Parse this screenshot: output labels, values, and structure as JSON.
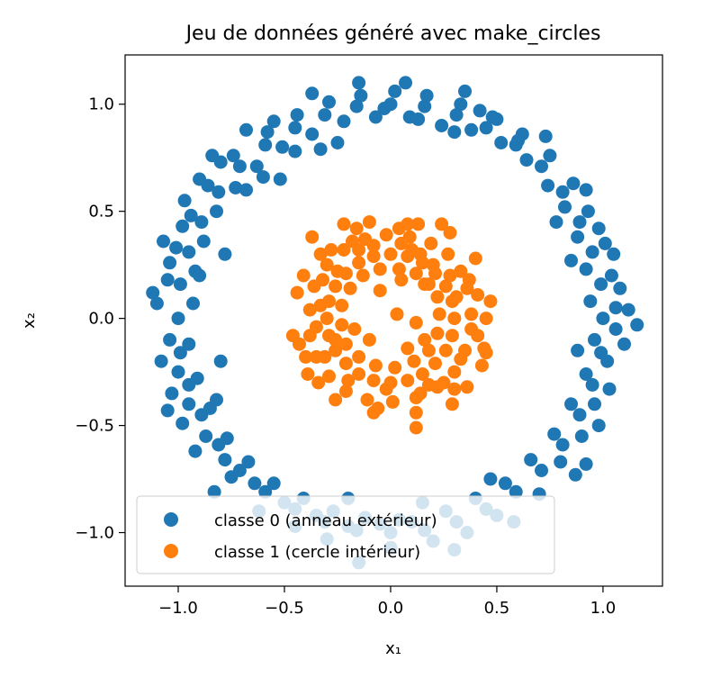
{
  "chart_data": {
    "type": "scatter",
    "title": "Jeu de données généré avec make_circles",
    "xlabel": "x₁",
    "ylabel": "x₂",
    "xlim": [
      -1.25,
      1.28
    ],
    "ylim": [
      -1.25,
      1.23
    ],
    "xticks": [
      -1.0,
      -0.5,
      0.0,
      0.5,
      1.0
    ],
    "xtick_labels": [
      "−1.0",
      "−0.5",
      "0.0",
      "0.5",
      "1.0"
    ],
    "yticks": [
      -1.0,
      -0.5,
      0.0,
      0.5,
      1.0
    ],
    "ytick_labels": [
      "−1.0",
      "−0.5",
      "0.0",
      "0.5",
      "1.0"
    ],
    "grid": false,
    "legend_position": "lower-left",
    "series": [
      {
        "name": "classe 0 (anneau extérieur)",
        "color": "#1f77b4",
        "points": [
          [
            1.0,
            0.0
          ],
          [
            0.99,
            0.16
          ],
          [
            0.95,
            0.31
          ],
          [
            0.89,
            0.45
          ],
          [
            0.81,
            0.59
          ],
          [
            0.71,
            0.71
          ],
          [
            0.59,
            0.81
          ],
          [
            0.45,
            0.89
          ],
          [
            0.31,
            0.95
          ],
          [
            0.16,
            0.99
          ],
          [
            0.0,
            1.0
          ],
          [
            -0.16,
            0.99
          ],
          [
            -0.31,
            0.95
          ],
          [
            -0.45,
            0.89
          ],
          [
            -0.59,
            0.81
          ],
          [
            -0.71,
            0.71
          ],
          [
            -0.81,
            0.59
          ],
          [
            -0.89,
            0.45
          ],
          [
            -0.95,
            0.31
          ],
          [
            -0.99,
            0.16
          ],
          [
            -1.0,
            0.0
          ],
          [
            -0.99,
            -0.16
          ],
          [
            -0.95,
            -0.31
          ],
          [
            -0.89,
            -0.45
          ],
          [
            -0.81,
            -0.59
          ],
          [
            -0.71,
            -0.71
          ],
          [
            -0.59,
            -0.81
          ],
          [
            -0.45,
            -0.89
          ],
          [
            -0.31,
            -0.95
          ],
          [
            -0.16,
            -0.99
          ],
          [
            0.0,
            -1.0
          ],
          [
            0.16,
            -0.99
          ],
          [
            0.31,
            -0.95
          ],
          [
            0.45,
            -0.89
          ],
          [
            0.59,
            -0.81
          ],
          [
            0.71,
            -0.71
          ],
          [
            0.81,
            -0.59
          ],
          [
            0.89,
            -0.45
          ],
          [
            0.95,
            -0.31
          ],
          [
            0.99,
            -0.16
          ],
          [
            1.06,
            0.05
          ],
          [
            1.04,
            0.2
          ],
          [
            1.01,
            0.35
          ],
          [
            0.93,
            0.5
          ],
          [
            0.86,
            0.63
          ],
          [
            0.75,
            0.76
          ],
          [
            0.62,
            0.86
          ],
          [
            0.48,
            0.94
          ],
          [
            0.33,
            1.0
          ],
          [
            0.17,
            1.04
          ],
          [
            0.02,
            1.06
          ],
          [
            -0.14,
            1.04
          ],
          [
            -0.29,
            1.01
          ],
          [
            -0.44,
            0.95
          ],
          [
            -0.58,
            0.87
          ],
          [
            -0.74,
            0.76
          ],
          [
            -0.86,
            0.62
          ],
          [
            -0.94,
            0.48
          ],
          [
            -1.01,
            0.33
          ],
          [
            -1.05,
            0.18
          ],
          [
            -1.1,
            0.07
          ],
          [
            -1.04,
            -0.1
          ],
          [
            -1.0,
            -0.25
          ],
          [
            -0.95,
            -0.4
          ],
          [
            -0.87,
            -0.55
          ],
          [
            -0.78,
            -0.66
          ],
          [
            -0.64,
            -0.77
          ],
          [
            -0.5,
            -0.86
          ],
          [
            -0.35,
            -0.92
          ],
          [
            -0.2,
            -0.97
          ],
          [
            -0.05,
            -0.96
          ],
          [
            0.1,
            -0.95
          ],
          [
            0.26,
            -0.9
          ],
          [
            0.4,
            -0.84
          ],
          [
            0.54,
            -0.77
          ],
          [
            0.66,
            -0.66
          ],
          [
            0.77,
            -0.54
          ],
          [
            0.85,
            -0.4
          ],
          [
            0.92,
            -0.26
          ],
          [
            0.96,
            -0.1
          ],
          [
            0.94,
            0.08
          ],
          [
            0.92,
            0.23
          ],
          [
            0.88,
            0.38
          ],
          [
            0.82,
            0.52
          ],
          [
            0.74,
            0.62
          ],
          [
            0.64,
            0.74
          ],
          [
            0.52,
            0.82
          ],
          [
            0.38,
            0.88
          ],
          [
            0.24,
            0.9
          ],
          [
            0.09,
            0.94
          ],
          [
            -0.07,
            0.94
          ],
          [
            -0.22,
            0.92
          ],
          [
            -0.37,
            0.86
          ],
          [
            -0.51,
            0.8
          ],
          [
            -0.63,
            0.71
          ],
          [
            -0.73,
            0.61
          ],
          [
            -0.82,
            0.5
          ],
          [
            -0.88,
            0.36
          ],
          [
            -0.92,
            0.22
          ],
          [
            -0.93,
            0.07
          ],
          [
            -0.95,
            -0.12
          ],
          [
            -0.91,
            -0.28
          ],
          [
            -0.85,
            -0.42
          ],
          [
            -0.77,
            -0.56
          ],
          [
            -0.67,
            -0.67
          ],
          [
            -0.55,
            -0.77
          ],
          [
            -0.41,
            -0.84
          ],
          [
            -0.27,
            -0.9
          ],
          [
            -0.12,
            -0.93
          ],
          [
            0.04,
            -0.94
          ],
          [
            1.12,
            0.04
          ],
          [
            1.16,
            -0.03
          ],
          [
            1.08,
            0.14
          ],
          [
            1.1,
            -0.12
          ],
          [
            0.98,
            0.42
          ],
          [
            1.05,
            0.3
          ],
          [
            0.92,
            0.6
          ],
          [
            -0.52,
            0.65
          ],
          [
            -0.33,
            0.79
          ],
          [
            0.13,
            0.93
          ],
          [
            0.35,
            1.06
          ],
          [
            -0.15,
            1.1
          ],
          [
            0.07,
            1.1
          ],
          [
            -1.12,
            0.12
          ],
          [
            -1.07,
            0.36
          ],
          [
            -1.05,
            -0.43
          ],
          [
            -0.83,
            -0.81
          ],
          [
            -0.15,
            -1.14
          ],
          [
            0.3,
            -1.08
          ],
          [
            0.58,
            -0.95
          ],
          [
            0.92,
            -0.68
          ],
          [
            0.87,
            -0.73
          ],
          [
            1.03,
            -0.33
          ],
          [
            0.98,
            -0.5
          ],
          [
            0.47,
            -0.75
          ],
          [
            -0.2,
            -0.84
          ],
          [
            0.15,
            -0.86
          ],
          [
            -0.8,
            0.73
          ],
          [
            -0.68,
            0.6
          ],
          [
            -0.97,
            0.55
          ],
          [
            -0.9,
            0.2
          ],
          [
            -0.78,
            0.3
          ],
          [
            -0.8,
            -0.2
          ],
          [
            -0.82,
            -0.38
          ],
          [
            0.85,
            0.27
          ],
          [
            0.88,
            -0.15
          ],
          [
            0.78,
            0.45
          ],
          [
            0.73,
            0.85
          ],
          [
            0.6,
            0.83
          ],
          [
            0.3,
            0.87
          ],
          [
            -0.25,
            0.82
          ],
          [
            -0.45,
            0.78
          ],
          [
            -0.6,
            0.66
          ],
          [
            0.5,
            0.93
          ],
          [
            0.42,
            0.97
          ],
          [
            -0.03,
            0.98
          ],
          [
            -0.37,
            1.05
          ],
          [
            -0.55,
            0.92
          ],
          [
            -0.68,
            0.88
          ],
          [
            -0.84,
            0.76
          ],
          [
            -0.9,
            0.65
          ],
          [
            -0.98,
            0.43
          ],
          [
            -1.04,
            0.26
          ],
          [
            -1.08,
            -0.2
          ],
          [
            -1.03,
            -0.35
          ],
          [
            -0.98,
            -0.49
          ],
          [
            -0.92,
            -0.62
          ],
          [
            -0.75,
            -0.74
          ],
          [
            -0.62,
            -0.9
          ],
          [
            -0.45,
            -0.97
          ],
          [
            -0.3,
            -1.03
          ],
          [
            0.0,
            -1.07
          ],
          [
            0.2,
            -1.04
          ],
          [
            0.36,
            -1.0
          ],
          [
            0.5,
            -0.92
          ],
          [
            0.7,
            -0.82
          ],
          [
            0.8,
            -0.67
          ],
          [
            0.9,
            -0.55
          ],
          [
            0.96,
            -0.4
          ],
          [
            1.02,
            -0.2
          ],
          [
            1.06,
            -0.05
          ]
        ]
      },
      {
        "name": "classe 1 (cercle intérieur)",
        "color": "#ff7f0e",
        "points": [
          [
            0.3,
            0.0
          ],
          [
            0.29,
            0.08
          ],
          [
            0.26,
            0.15
          ],
          [
            0.21,
            0.21
          ],
          [
            0.15,
            0.26
          ],
          [
            0.08,
            0.29
          ],
          [
            0.0,
            0.3
          ],
          [
            -0.08,
            0.29
          ],
          [
            -0.15,
            0.26
          ],
          [
            -0.21,
            0.21
          ],
          [
            -0.26,
            0.15
          ],
          [
            -0.29,
            0.08
          ],
          [
            -0.3,
            0.0
          ],
          [
            -0.29,
            -0.08
          ],
          [
            -0.26,
            -0.15
          ],
          [
            -0.21,
            -0.21
          ],
          [
            -0.15,
            -0.26
          ],
          [
            -0.08,
            -0.29
          ],
          [
            0.0,
            -0.3
          ],
          [
            0.08,
            -0.29
          ],
          [
            0.15,
            -0.26
          ],
          [
            0.21,
            -0.21
          ],
          [
            0.26,
            -0.15
          ],
          [
            0.29,
            -0.08
          ],
          [
            0.38,
            0.02
          ],
          [
            0.36,
            0.14
          ],
          [
            0.33,
            0.22
          ],
          [
            0.27,
            0.3
          ],
          [
            0.19,
            0.35
          ],
          [
            0.09,
            0.38
          ],
          [
            -0.02,
            0.39
          ],
          [
            -0.12,
            0.37
          ],
          [
            -0.22,
            0.32
          ],
          [
            -0.3,
            0.25
          ],
          [
            -0.36,
            0.15
          ],
          [
            -0.38,
            0.04
          ],
          [
            -0.38,
            -0.08
          ],
          [
            -0.35,
            -0.18
          ],
          [
            -0.29,
            -0.27
          ],
          [
            -0.21,
            -0.34
          ],
          [
            -0.11,
            -0.38
          ],
          [
            0.01,
            -0.39
          ],
          [
            0.12,
            -0.37
          ],
          [
            0.22,
            -0.32
          ],
          [
            0.3,
            -0.25
          ],
          [
            0.35,
            -0.15
          ],
          [
            0.38,
            -0.05
          ],
          [
            0.23,
            0.02
          ],
          [
            0.22,
            0.1
          ],
          [
            0.18,
            0.16
          ],
          [
            0.12,
            0.21
          ],
          [
            0.04,
            0.23
          ],
          [
            -0.05,
            0.23
          ],
          [
            -0.13,
            0.2
          ],
          [
            -0.19,
            0.14
          ],
          [
            -0.23,
            0.06
          ],
          [
            -0.23,
            -0.03
          ],
          [
            -0.21,
            -0.12
          ],
          [
            -0.15,
            -0.18
          ],
          [
            -0.07,
            -0.22
          ],
          [
            0.02,
            -0.23
          ],
          [
            0.11,
            -0.2
          ],
          [
            0.18,
            -0.15
          ],
          [
            0.22,
            -0.07
          ],
          [
            0.45,
            0.0
          ],
          [
            0.47,
            0.08
          ],
          [
            0.44,
            -0.14
          ],
          [
            0.4,
            0.28
          ],
          [
            0.28,
            0.4
          ],
          [
            0.08,
            0.44
          ],
          [
            -0.16,
            0.42
          ],
          [
            -0.33,
            0.3
          ],
          [
            -0.44,
            0.12
          ],
          [
            -0.46,
            -0.08
          ],
          [
            -0.39,
            -0.26
          ],
          [
            -0.26,
            -0.38
          ],
          [
            -0.08,
            -0.44
          ],
          [
            0.12,
            -0.44
          ],
          [
            0.3,
            -0.33
          ],
          [
            0.43,
            -0.22
          ],
          [
            0.12,
            -0.51
          ],
          [
            -0.37,
            0.38
          ],
          [
            -0.22,
            0.44
          ],
          [
            0.13,
            0.44
          ],
          [
            0.24,
            0.44
          ],
          [
            -0.1,
            0.45
          ],
          [
            0.45,
            -0.16
          ],
          [
            0.36,
            -0.32
          ],
          [
            0.16,
            0.16
          ],
          [
            0.05,
            0.18
          ],
          [
            -0.05,
            0.13
          ],
          [
            0.03,
            0.02
          ],
          [
            0.12,
            -0.02
          ],
          [
            0.08,
            -0.14
          ],
          [
            -0.1,
            -0.1
          ],
          [
            -0.17,
            -0.05
          ],
          [
            0.16,
            -0.1
          ],
          [
            0.2,
            0.25
          ],
          [
            -0.25,
            0.22
          ],
          [
            -0.43,
            -0.12
          ],
          [
            -0.33,
            0.06
          ],
          [
            -0.31,
            -0.18
          ],
          [
            0.31,
            0.1
          ],
          [
            -0.02,
            -0.33
          ],
          [
            0.18,
            -0.31
          ],
          [
            0.05,
            0.35
          ],
          [
            -0.28,
            0.32
          ],
          [
            -0.2,
            -0.29
          ],
          [
            0.37,
            0.18
          ],
          [
            0.41,
            -0.08
          ],
          [
            -0.06,
            -0.42
          ],
          [
            0.29,
            -0.4
          ],
          [
            -0.34,
            -0.3
          ],
          [
            -0.41,
            0.2
          ],
          [
            0.04,
            0.42
          ],
          [
            -0.15,
            0.32
          ],
          [
            0.28,
            0.2
          ],
          [
            0.33,
            -0.19
          ],
          [
            -0.26,
            -0.1
          ],
          [
            0.25,
            -0.3
          ],
          [
            -0.08,
            0.34
          ],
          [
            0.14,
            -0.35
          ],
          [
            -0.35,
            -0.04
          ],
          [
            0.14,
            0.3
          ],
          [
            -0.18,
            0.36
          ],
          [
            0.1,
            0.32
          ],
          [
            -0.32,
            0.18
          ],
          [
            0.41,
            0.11
          ],
          [
            -0.4,
            -0.18
          ]
        ]
      }
    ]
  }
}
